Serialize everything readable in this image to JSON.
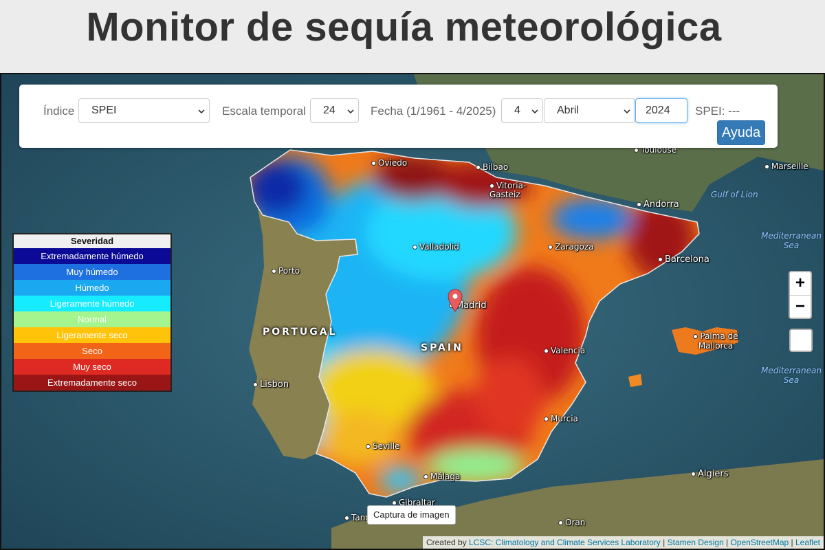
{
  "header": {
    "title": "Monitor de sequía meteorológica"
  },
  "controls": {
    "index_label": "Índice",
    "index_value": "SPEI",
    "scale_label": "Escala temporal",
    "scale_value": "24",
    "date_label": "Fecha (1/1961 - 4/2025)",
    "day_value": "4",
    "month_value": "Abril",
    "year_value": "2024",
    "readout": "SPEI: ---",
    "help_label": "Ayuda"
  },
  "legend": {
    "title": "Severidad",
    "items": [
      {
        "label": "Extremadamente húmedo",
        "color": "#0a0a96",
        "text_color": "#ffffff"
      },
      {
        "label": "Muy húmedo",
        "color": "#1e6fe0",
        "text_color": "#ffffff"
      },
      {
        "label": "Húmedo",
        "color": "#1aa8f0",
        "text_color": "#ffffff"
      },
      {
        "label": "Ligeramente húmedo",
        "color": "#16ecff",
        "text_color": "#ffffff"
      },
      {
        "label": "Normal",
        "color": "#a4f58e",
        "text_color": "#ffffff"
      },
      {
        "label": "Ligeramente seco",
        "color": "#ffc40a",
        "text_color": "#ffffff"
      },
      {
        "label": "Seco",
        "color": "#f26418",
        "text_color": "#ffffff"
      },
      {
        "label": "Muy seco",
        "color": "#de2a22",
        "text_color": "#ffffff"
      },
      {
        "label": "Extremadamente seco",
        "color": "#9a1616",
        "text_color": "#ffffff"
      }
    ]
  },
  "map": {
    "cities": [
      "Oviedo",
      "Bilbao",
      "Vitoria-Gasteiz",
      "Toulouse",
      "Marseille",
      "Andorra",
      "Valladolid",
      "Zaragoza",
      "Barcelona",
      "Porto",
      "Madrid",
      "Valencia",
      "Palma de Mallorca",
      "Lisbon",
      "Murcia",
      "Seville",
      "Málaga",
      "Gibraltar",
      "Tangier",
      "Oran",
      "Algiers"
    ],
    "countries": [
      "PORTUGAL",
      "SPAIN"
    ],
    "seas": [
      "Gulf of Lion",
      "Mediterranean Sea",
      "Mediterranean Sea"
    ],
    "zoom_in": "+",
    "zoom_out": "−"
  },
  "capture_label": "Captura de imagen",
  "attribution": {
    "prefix": "Created by",
    "lcsc": "LCSC: Climatology and Climate Services Laboratory",
    "stamen": "Stamen Design",
    "osm": "OpenStreetMap",
    "leaflet": "Leaflet"
  }
}
